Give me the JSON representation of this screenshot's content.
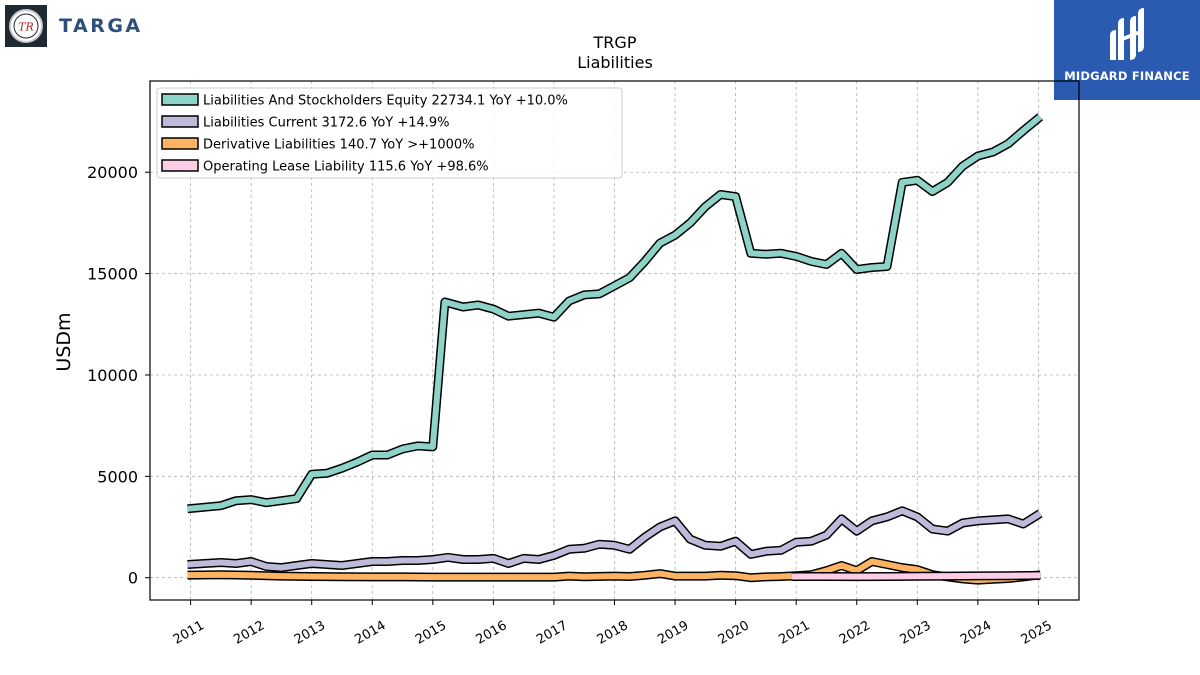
{
  "logos": {
    "left": {
      "text": "TARGA",
      "mark_text": "TR"
    },
    "right": {
      "text": "MIDGARD FINANCE"
    }
  },
  "chart_data": {
    "type": "line",
    "title": "TRGP",
    "subtitle": "Liabilities",
    "ylabel": "USDm",
    "xlabel": "",
    "ylim": [
      -1100,
      24500
    ],
    "xlim": [
      2010.33,
      2025.67
    ],
    "grid": true,
    "legend_position": "top-left",
    "y_ticks": [
      0,
      5000,
      10000,
      15000,
      20000
    ],
    "x_ticks": [
      2011,
      2012,
      2013,
      2014,
      2015,
      2016,
      2017,
      2018,
      2019,
      2020,
      2021,
      2022,
      2023,
      2024,
      2025
    ],
    "x_tick_labels": [
      "2011",
      "2012",
      "2013",
      "2014",
      "2015",
      "2016",
      "2017",
      "2018",
      "2019",
      "2020",
      "2021",
      "2022",
      "2023",
      "2024",
      "2025"
    ],
    "series": [
      {
        "name": "Liabilities And Stockholders Equity",
        "legend_label": "Liabilities And Stockholders Equity  22734.1 YoY +10.0%",
        "color": "#8dd3c7",
        "x": [
          2010.95,
          2011.5,
          2011.75,
          2012.0,
          2012.25,
          2012.5,
          2012.75,
          2013.0,
          2013.25,
          2013.5,
          2013.75,
          2014.0,
          2014.25,
          2014.5,
          2014.75,
          2015.0,
          2015.2,
          2015.5,
          2015.75,
          2016.0,
          2016.25,
          2016.75,
          2017.0,
          2017.25,
          2017.5,
          2017.75,
          2018.0,
          2018.25,
          2018.5,
          2018.75,
          2019.0,
          2019.25,
          2019.5,
          2019.75,
          2020.0,
          2020.25,
          2020.5,
          2020.75,
          2021.0,
          2021.25,
          2021.5,
          2021.75,
          2022.0,
          2022.25,
          2022.5,
          2022.75,
          2023.0,
          2023.25,
          2023.5,
          2023.75,
          2024.0,
          2024.25,
          2024.5,
          2024.75,
          2025.03
        ],
        "y": [
          3400,
          3550,
          3800,
          3850,
          3700,
          3800,
          3900,
          5100,
          5150,
          5400,
          5700,
          6050,
          6050,
          6350,
          6500,
          6450,
          13600,
          13350,
          13450,
          13250,
          12900,
          13050,
          12850,
          13650,
          13950,
          14000,
          14400,
          14800,
          15600,
          16500,
          16900,
          17500,
          18300,
          18900,
          18800,
          16000,
          15950,
          16000,
          15850,
          15600,
          15450,
          16000,
          15200,
          15300,
          15350,
          19500,
          19600,
          19050,
          19500,
          20300,
          20800,
          21000,
          21400,
          22050,
          22734.1
        ]
      },
      {
        "name": "Liabilities Current",
        "legend_label": "Liabilities Current  3172.6 YoY +14.9%",
        "color": "#bebada",
        "x": [
          2010.95,
          2011.5,
          2011.75,
          2012.0,
          2012.25,
          2012.5,
          2012.75,
          2013.0,
          2013.25,
          2013.5,
          2013.75,
          2014.0,
          2014.25,
          2014.5,
          2014.75,
          2015.0,
          2015.25,
          2015.5,
          2015.75,
          2016.0,
          2016.25,
          2016.5,
          2016.75,
          2017.0,
          2017.25,
          2017.5,
          2017.75,
          2018.0,
          2018.25,
          2018.5,
          2018.75,
          2019.0,
          2019.25,
          2019.5,
          2019.75,
          2020.0,
          2020.25,
          2020.5,
          2020.75,
          2021.0,
          2021.25,
          2021.5,
          2021.75,
          2022.0,
          2022.25,
          2022.5,
          2022.75,
          2023.0,
          2023.25,
          2023.5,
          2023.75,
          2024.0,
          2024.25,
          2024.5,
          2024.75,
          2025.03
        ],
        "y": [
          650,
          750,
          700,
          800,
          550,
          500,
          600,
          700,
          650,
          600,
          700,
          800,
          800,
          850,
          850,
          900,
          1000,
          900,
          900,
          950,
          700,
          950,
          900,
          1100,
          1400,
          1450,
          1650,
          1600,
          1400,
          2000,
          2500,
          2800,
          1900,
          1600,
          1550,
          1800,
          1150,
          1300,
          1350,
          1750,
          1800,
          2100,
          2900,
          2300,
          2800,
          3000,
          3300,
          3000,
          2400,
          2300,
          2700,
          2800,
          2850,
          2900,
          2650,
          3172.6
        ]
      },
      {
        "name": "Derivative Liabilities",
        "legend_label": "Derivative Liabilities  140.7 YoY >+1000%",
        "color": "#fdb462",
        "x": [
          2010.95,
          2011.5,
          2012.0,
          2012.5,
          2013.0,
          2013.5,
          2014.0,
          2014.5,
          2015.0,
          2015.5,
          2016.0,
          2016.5,
          2017.0,
          2017.25,
          2017.5,
          2018.0,
          2018.25,
          2018.5,
          2018.75,
          2019.0,
          2019.5,
          2019.75,
          2020.0,
          2020.25,
          2020.5,
          2020.75,
          2021.0,
          2021.25,
          2021.5,
          2021.75,
          2022.0,
          2022.25,
          2022.5,
          2022.75,
          2023.0,
          2023.25,
          2023.5,
          2023.75,
          2024.0,
          2024.25,
          2024.5,
          2024.75,
          2025.03
        ],
        "y": [
          130,
          150,
          120,
          80,
          60,
          50,
          40,
          40,
          30,
          30,
          30,
          30,
          30,
          80,
          50,
          80,
          60,
          120,
          200,
          80,
          80,
          120,
          100,
          0,
          40,
          60,
          100,
          150,
          350,
          600,
          350,
          800,
          650,
          500,
          400,
          150,
          40,
          -60,
          -120,
          -80,
          -40,
          40,
          140.7
        ]
      },
      {
        "name": "Operating Lease Liability",
        "legend_label": "Operating Lease Liability  115.6 YoY +98.6%",
        "color": "#fccde5",
        "x": [
          2020.92,
          2021.5,
          2022.0,
          2022.5,
          2023.0,
          2023.5,
          2024.0,
          2024.5,
          2025.03
        ],
        "y": [
          60,
          60,
          55,
          60,
          70,
          80,
          90,
          100,
          115.6
        ]
      }
    ]
  }
}
